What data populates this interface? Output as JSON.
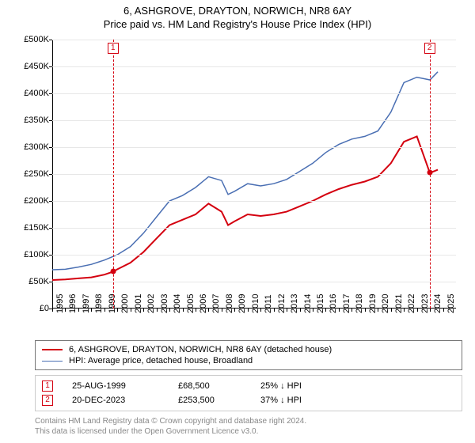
{
  "title": {
    "line1": "6, ASHGROVE, DRAYTON, NORWICH, NR8 6AY",
    "line2": "Price paid vs. HM Land Registry's House Price Index (HPI)"
  },
  "chart": {
    "type": "line",
    "background_color": "#ffffff",
    "grid_color": "#e7e7e7",
    "axis_color": "#000000",
    "label_fontsize": 11,
    "xlim": [
      1995,
      2026
    ],
    "ylim": [
      0,
      500000
    ],
    "yticks": [
      0,
      50000,
      100000,
      150000,
      200000,
      250000,
      300000,
      350000,
      400000,
      450000,
      500000
    ],
    "ytick_labels": [
      "£0",
      "£50K",
      "£100K",
      "£150K",
      "£200K",
      "£250K",
      "£300K",
      "£350K",
      "£400K",
      "£450K",
      "£500K"
    ],
    "xticks": [
      1995,
      1996,
      1997,
      1998,
      1999,
      2000,
      2001,
      2002,
      2003,
      2004,
      2005,
      2006,
      2007,
      2008,
      2009,
      2010,
      2011,
      2012,
      2013,
      2014,
      2015,
      2016,
      2017,
      2018,
      2019,
      2020,
      2021,
      2022,
      2023,
      2024,
      2025
    ],
    "series": [
      {
        "key": "property",
        "name": "6, ASHGROVE, DRAYTON, NORWICH, NR8 6AY (detached house)",
        "color": "#d4000f",
        "line_width": 2,
        "x": [
          1995,
          1996,
          1997,
          1998,
          1999,
          1999.67,
          2000,
          2001,
          2002,
          2003,
          2004,
          2005,
          2006,
          2007,
          2008,
          2008.5,
          2009,
          2010,
          2011,
          2012,
          2013,
          2014,
          2015,
          2016,
          2017,
          2018,
          2019,
          2020,
          2021,
          2022,
          2023,
          2023.97,
          2024,
          2024.6
        ],
        "y": [
          53000,
          54000,
          56000,
          58000,
          63000,
          68500,
          73000,
          85000,
          105000,
          130000,
          155000,
          165000,
          175000,
          195000,
          180000,
          155000,
          162000,
          175000,
          172000,
          175000,
          180000,
          190000,
          200000,
          212000,
          222000,
          230000,
          236000,
          245000,
          270000,
          310000,
          320000,
          253500,
          252000,
          258000
        ]
      },
      {
        "key": "hpi",
        "name": "HPI: Average price, detached house, Broadland",
        "color": "#4a6fb3",
        "line_width": 1.5,
        "x": [
          1995,
          1996,
          1997,
          1998,
          1999,
          2000,
          2001,
          2002,
          2003,
          2004,
          2005,
          2006,
          2007,
          2008,
          2008.5,
          2009,
          2010,
          2011,
          2012,
          2013,
          2014,
          2015,
          2016,
          2017,
          2018,
          2019,
          2020,
          2021,
          2022,
          2023,
          2024,
          2024.6
        ],
        "y": [
          72000,
          73000,
          77000,
          82000,
          90000,
          100000,
          115000,
          140000,
          170000,
          200000,
          210000,
          225000,
          245000,
          238000,
          212000,
          218000,
          232000,
          228000,
          232000,
          240000,
          255000,
          270000,
          290000,
          305000,
          315000,
          320000,
          330000,
          365000,
          420000,
          430000,
          425000,
          440000
        ]
      }
    ],
    "markers": [
      {
        "n": "1",
        "x": 1999.67,
        "color": "#d4000f",
        "date": "25-AUG-1999",
        "price": "£68,500",
        "diff": "25% ↓ HPI",
        "point_y": 68500
      },
      {
        "n": "2",
        "x": 2023.97,
        "color": "#d4000f",
        "date": "20-DEC-2023",
        "price": "£253,500",
        "diff": "37% ↓ HPI",
        "point_y": 253500
      }
    ]
  },
  "legend": {
    "rows": [
      {
        "color": "#d4000f",
        "width": 2,
        "label": "6, ASHGROVE, DRAYTON, NORWICH, NR8 6AY (detached house)"
      },
      {
        "color": "#4a6fb3",
        "width": 1.5,
        "label": "HPI: Average price, detached house, Broadland"
      }
    ]
  },
  "footer": {
    "line1": "Contains HM Land Registry data © Crown copyright and database right 2024.",
    "line2": "This data is licensed under the Open Government Licence v3.0."
  }
}
